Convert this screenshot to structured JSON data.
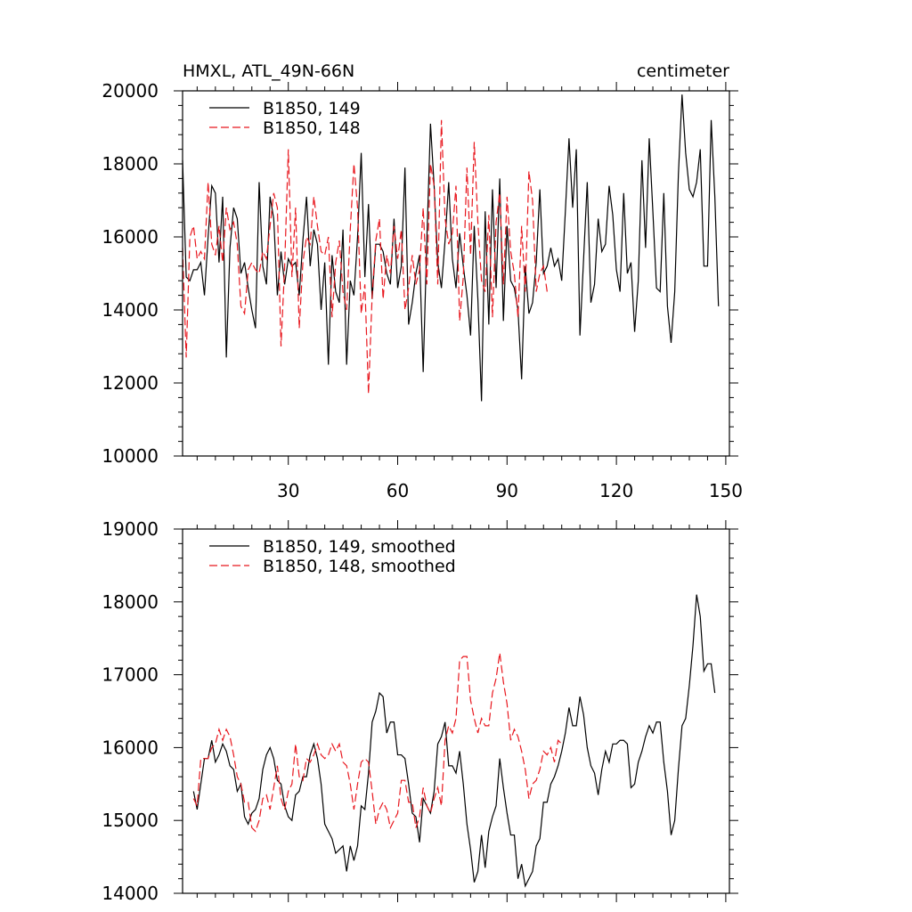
{
  "chart_data": [
    {
      "type": "line",
      "title": "HMXL, ATL_49N-66N",
      "units_label": "centimeter",
      "xlim": [
        1,
        151
      ],
      "ylim": [
        10000,
        20000
      ],
      "x_ticks": [
        30,
        60,
        90,
        120,
        150
      ],
      "x_tick_labels": [
        "30",
        "60",
        "90",
        "120",
        "150"
      ],
      "y_ticks": [
        10000,
        12000,
        14000,
        16000,
        18000,
        20000
      ],
      "y_tick_labels": [
        "10000",
        "12000",
        "14000",
        "16000",
        "18000",
        "20000"
      ],
      "legend_position": "top-left",
      "series": [
        {
          "name": "B1850, 149",
          "color": "#000000",
          "dash": "solid",
          "x_start": 1,
          "values": [
            18100,
            14900,
            14800,
            15100,
            15100,
            15300,
            14400,
            16000,
            17400,
            17200,
            15300,
            17100,
            12700,
            15700,
            16800,
            16500,
            15000,
            15300,
            14600,
            14000,
            13500,
            17500,
            15200,
            14700,
            17100,
            16500,
            14400,
            15600,
            14700,
            15400,
            15200,
            15300,
            14400,
            15900,
            17100,
            15200,
            16200,
            15800,
            14000,
            15300,
            12500,
            15500,
            14500,
            14200,
            16200,
            12500,
            14800,
            14400,
            16000,
            18300,
            14900,
            16900,
            14300,
            15800,
            15800,
            15600,
            15000,
            14700,
            16500,
            14600,
            15200,
            17900,
            13600,
            14200,
            15000,
            15500,
            12300,
            15900,
            19100,
            17400,
            15300,
            14600,
            15900,
            17500,
            15400,
            14600,
            16100,
            15200,
            14400,
            13300,
            16300,
            14300,
            11500,
            16700,
            13600,
            17300,
            14600,
            17600,
            13700,
            16300,
            14800,
            14600,
            14000,
            12100,
            15200,
            13900,
            14200,
            15300,
            17300,
            15000,
            15200,
            15700,
            15200,
            15400,
            14800,
            16700,
            18700,
            16800,
            18400,
            13300,
            15400,
            17500,
            14200,
            14700,
            16500,
            15600,
            15800,
            17400,
            16600,
            15100,
            14500,
            17200,
            15000,
            15300,
            13400,
            14800,
            18100,
            15700,
            18700,
            16700,
            14600,
            14500,
            17200,
            14100,
            13100,
            14500,
            17700,
            19900,
            18300,
            17300,
            17100,
            17500,
            18400,
            15200,
            15200,
            19200,
            17100,
            14100
          ]
        },
        {
          "name": "B1850, 148",
          "color": "#e8171e",
          "dash": "dashed",
          "x_start": 1,
          "values": [
            15700,
            12700,
            16000,
            16300,
            15400,
            15600,
            15400,
            17500,
            15800,
            15500,
            16300,
            15300,
            16800,
            16200,
            16400,
            15800,
            14100,
            13900,
            15100,
            15300,
            15100,
            15000,
            15600,
            15400,
            16300,
            17200,
            16800,
            13000,
            15200,
            18400,
            14900,
            16800,
            13500,
            15300,
            16000,
            15800,
            17100,
            16300,
            15600,
            15500,
            16000,
            13800,
            15300,
            15900,
            14500,
            14000,
            16200,
            18000,
            16800,
            13900,
            14700,
            11700,
            14400,
            15900,
            16500,
            14300,
            15500,
            15000,
            16300,
            15400,
            16200,
            14000,
            14600,
            15500,
            14700,
            15100,
            16800,
            14700,
            18000,
            17400,
            14700,
            19200,
            16500,
            15800,
            16100,
            17400,
            13700,
            14900,
            17900,
            15500,
            18600,
            16400,
            14800,
            14500,
            16600,
            13800,
            16400,
            17200,
            14700,
            17100,
            15600,
            15000,
            13800,
            16300,
            14500,
            17800,
            17000,
            14500,
            15000,
            15200,
            14500
          ]
        }
      ]
    },
    {
      "type": "line",
      "xlim": [
        1,
        151
      ],
      "ylim": [
        14000,
        19000
      ],
      "x_ticks": [
        30,
        60,
        90,
        120,
        150
      ],
      "y_ticks": [
        14000,
        15000,
        16000,
        17000,
        18000,
        19000
      ],
      "y_tick_labels": [
        "14000",
        "15000",
        "16000",
        "17000",
        "18000",
        "19000"
      ],
      "legend_position": "top-left",
      "series": [
        {
          "name": "B1850, 149, smoothed",
          "color": "#000000",
          "dash": "solid",
          "x_start": 4,
          "values": [
            15400,
            15150,
            15500,
            15850,
            15850,
            16100,
            15800,
            15900,
            16050,
            15950,
            15750,
            15700,
            15400,
            15500,
            15050,
            14950,
            15100,
            15150,
            15300,
            15700,
            15900,
            16000,
            15850,
            15550,
            15500,
            15200,
            15050,
            15000,
            15350,
            15400,
            15600,
            15600,
            15900,
            16050,
            15850,
            15500,
            14950,
            14850,
            14750,
            14550,
            14600,
            14650,
            14300,
            14650,
            14450,
            14650,
            15200,
            15150,
            15650,
            16350,
            16500,
            16750,
            16700,
            16200,
            16350,
            16350,
            15900,
            15900,
            15850,
            15500,
            15100,
            15050,
            14700,
            15300,
            15200,
            15100,
            15400,
            16050,
            16150,
            16350,
            15750,
            15750,
            15650,
            15950,
            15500,
            14950,
            14600,
            14150,
            14300,
            14800,
            14350,
            14850,
            15050,
            15200,
            15850,
            15450,
            15100,
            14800,
            14800,
            14200,
            14400,
            14100,
            14200,
            14300,
            14650,
            14750,
            15250,
            15250,
            15500,
            15600,
            15750,
            15950,
            16200,
            16550,
            16300,
            16300,
            16700,
            16450,
            16000,
            15750,
            15650,
            15350,
            15700,
            15950,
            15800,
            16050,
            16050,
            16100,
            16100,
            16050,
            15450,
            15500,
            15800,
            15950,
            16150,
            16300,
            16200,
            16350,
            16350,
            15800,
            15400,
            14800,
            15000,
            15700,
            16300,
            16400,
            16850,
            17400,
            18100,
            17800,
            17050,
            17150,
            17150,
            16750
          ]
        },
        {
          "name": "B1850, 148, smoothed",
          "color": "#e8171e",
          "dash": "dashed",
          "x_start": 4,
          "values": [
            15300,
            15200,
            15850,
            15850,
            15850,
            16000,
            16050,
            16250,
            16100,
            16250,
            16150,
            15900,
            15600,
            15500,
            15250,
            15250,
            14900,
            14850,
            15000,
            15300,
            15350,
            15150,
            15450,
            15750,
            15300,
            15150,
            15400,
            15500,
            16050,
            15600,
            15550,
            15850,
            15800,
            15900,
            16050,
            15900,
            15850,
            15900,
            16050,
            15950,
            16050,
            15800,
            15750,
            15500,
            15150,
            15500,
            15800,
            15850,
            15800,
            15400,
            14950,
            15150,
            15250,
            15150,
            14900,
            15000,
            15100,
            15550,
            15550,
            15250,
            15250,
            14900,
            15050,
            15450,
            15200,
            15100,
            15300,
            15450,
            15200,
            16100,
            16300,
            16200,
            16400,
            17200,
            17250,
            17250,
            16650,
            16400,
            16200,
            16400,
            16300,
            16300,
            16750,
            16950,
            17300,
            16900,
            16600,
            16100,
            16250,
            16150,
            15950,
            15700,
            15300,
            15500,
            15550,
            15700,
            15950,
            15900,
            16000,
            15800,
            16100,
            16050
          ]
        }
      ]
    }
  ]
}
